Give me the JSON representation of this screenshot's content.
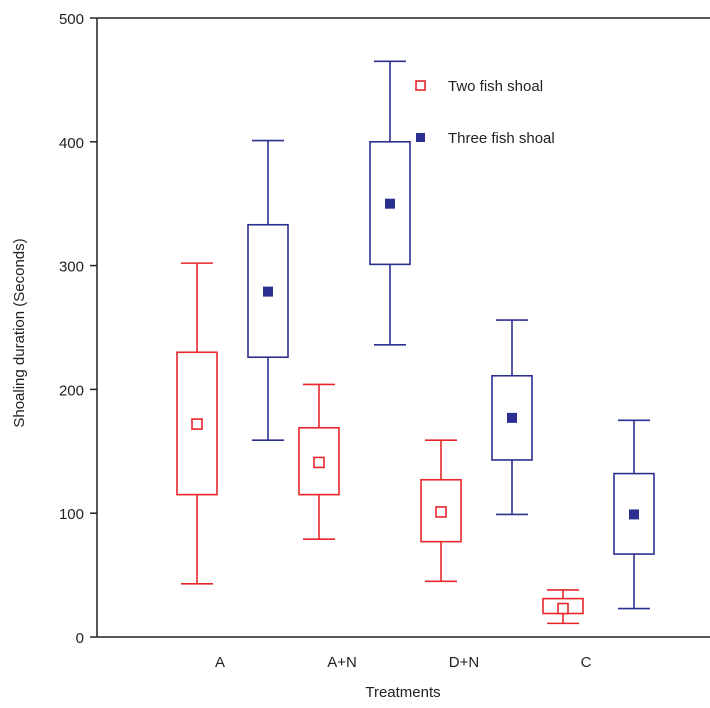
{
  "chart_data": {
    "type": "box",
    "xlabel": "Treatments",
    "ylabel": "Shoaling duration (Seconds)",
    "ylim": [
      0,
      500
    ],
    "yticks": [
      0,
      100,
      200,
      300,
      400,
      500
    ],
    "categories": [
      "A",
      "A+N",
      "D+N",
      "C"
    ],
    "legend_position": "top-right",
    "series": [
      {
        "name": "Two fish shoal",
        "color": "#e8262b",
        "marker": "open-square",
        "boxes": [
          {
            "min": 43,
            "q1": 115,
            "center": 172,
            "q3": 230,
            "max": 302
          },
          {
            "min": 79,
            "q1": 115,
            "center": 141,
            "q3": 169,
            "max": 204
          },
          {
            "min": 45,
            "q1": 77,
            "center": 101,
            "q3": 127,
            "max": 159
          },
          {
            "min": 11,
            "q1": 19,
            "center": 23,
            "q3": 31,
            "max": 38
          }
        ]
      },
      {
        "name": "Three fish shoal",
        "color": "#2b2f8f",
        "marker": "filled-square",
        "boxes": [
          {
            "min": 159,
            "q1": 226,
            "center": 279,
            "q3": 333,
            "max": 401
          },
          {
            "min": 236,
            "q1": 301,
            "center": 350,
            "q3": 400,
            "max": 465
          },
          {
            "min": 99,
            "q1": 143,
            "center": 177,
            "q3": 211,
            "max": 256
          },
          {
            "min": 23,
            "q1": 67,
            "center": 99,
            "q3": 132,
            "max": 175
          }
        ]
      }
    ]
  }
}
